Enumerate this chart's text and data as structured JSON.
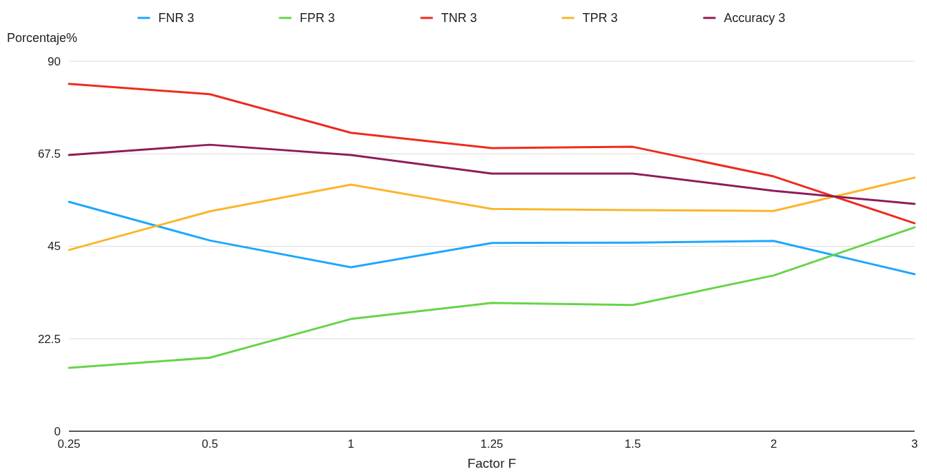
{
  "chart_data": {
    "type": "line",
    "xlabel": "Factor F",
    "ylabel": "Porcentaje%",
    "categories": [
      "0.25",
      "0.5",
      "1",
      "1.25",
      "1.5",
      "2",
      "3"
    ],
    "series": [
      {
        "name": "FNR 3",
        "color": "#1ea7fd",
        "values": [
          55.8,
          46.4,
          39.9,
          45.8,
          45.9,
          46.3,
          38.2
        ]
      },
      {
        "name": "FPR 3",
        "color": "#64d448",
        "values": [
          15.4,
          17.9,
          27.3,
          31.2,
          30.7,
          37.9,
          49.6
        ]
      },
      {
        "name": "TNR 3",
        "color": "#ee2a1e",
        "values": [
          84.5,
          82.0,
          72.6,
          68.9,
          69.2,
          62.0,
          50.6
        ]
      },
      {
        "name": "TPR 3",
        "color": "#fbb52b",
        "values": [
          44.1,
          53.5,
          60.0,
          54.1,
          53.8,
          53.6,
          61.7
        ]
      },
      {
        "name": "Accuracy 3",
        "color": "#8e1c57",
        "values": [
          67.2,
          69.7,
          67.2,
          62.7,
          62.7,
          58.5,
          55.3
        ]
      }
    ],
    "ylim": [
      0,
      90
    ],
    "yticks": [
      0,
      22.5,
      45,
      67.5,
      90
    ],
    "grid": "y",
    "legend": "top",
    "marker": "none",
    "line_style": "solid"
  }
}
